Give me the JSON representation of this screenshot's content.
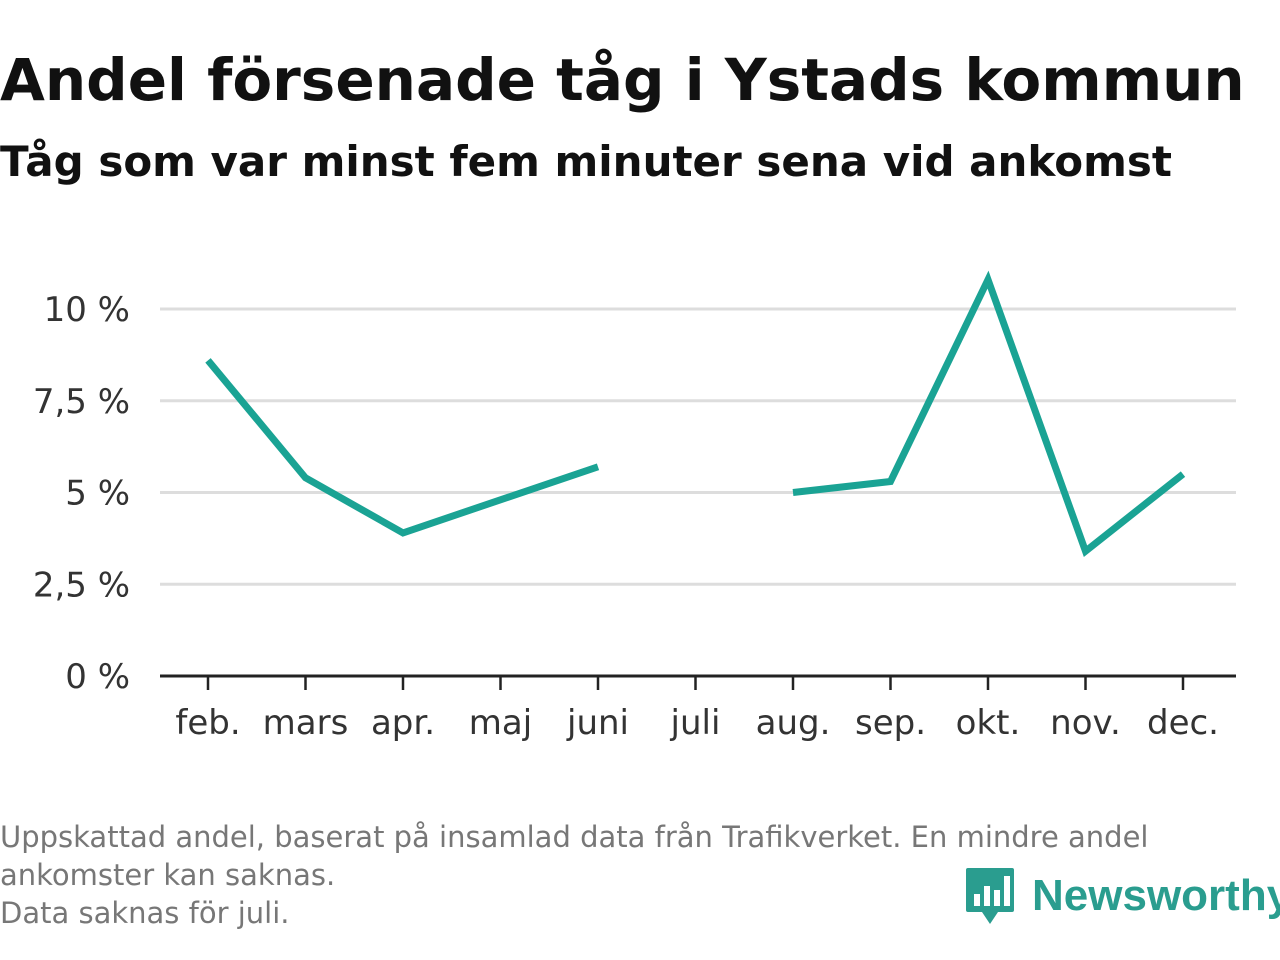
{
  "header": {
    "title": "Andel försenade tåg i Ystads kommun",
    "subtitle": "Tåg som var minst fem minuter sena vid ankomst"
  },
  "chart_data": {
    "type": "line",
    "title": "Andel försenade tåg i Ystads kommun",
    "subtitle": "Tåg som var minst fem minuter sena vid ankomst",
    "xlabel": "",
    "ylabel": "",
    "categories": [
      "feb.",
      "mars",
      "apr.",
      "maj",
      "juni",
      "juli",
      "aug.",
      "sep.",
      "okt.",
      "nov.",
      "dec."
    ],
    "series": [
      {
        "values": [
          8.6,
          5.4,
          3.9,
          4.8,
          5.7,
          null,
          5.0,
          5.3,
          10.8,
          3.4,
          5.5
        ]
      }
    ],
    "ylim": [
      0,
      10.5
    ],
    "yticks": [
      0,
      2.5,
      5,
      7.5,
      10
    ],
    "ytick_labels": [
      "0 %",
      "2,5 %",
      "5 %",
      "7,5 %",
      "10 %"
    ],
    "grid": true,
    "line_color": "#1aa394",
    "grid_color": "#dddddd",
    "axis_color": "#222222"
  },
  "footnote": {
    "line1": "Uppskattad andel, baserat på insamlad data från Trafikverket. En mindre andel ankomster kan saknas.",
    "line2": "Data saknas för juli."
  },
  "brand": {
    "name": "Newsworthy",
    "icon": "bar-chart-speech-bubble-icon",
    "color": "#2a9d8f"
  }
}
